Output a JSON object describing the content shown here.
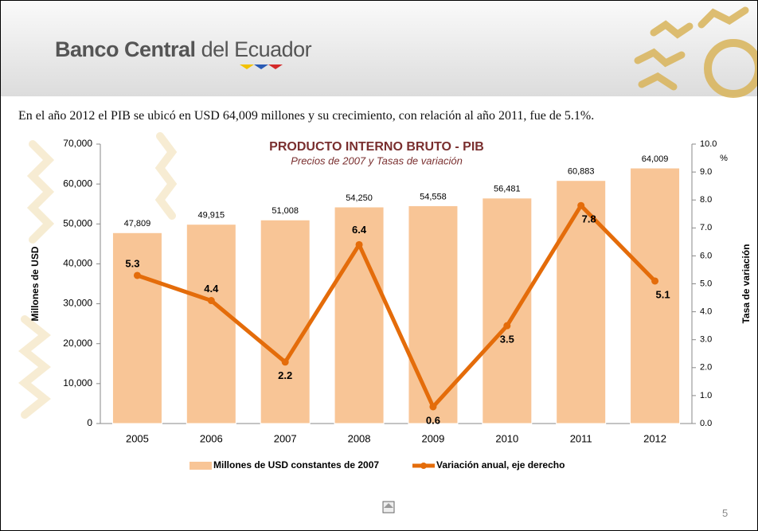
{
  "header": {
    "brand_bold": "Banco Central",
    "brand_rest": "del Ecuador"
  },
  "sentence": "En el año 2012 el PIB se ubicó en USD 64,009 millones y su crecimiento, con relación al año 2011, fue de 5.1%.",
  "page_number": "5",
  "chart_data": {
    "type": "bar",
    "title": "PRODUCTO INTERNO BRUTO - PIB",
    "subtitle": "Precios de 2007 y Tasas de variación",
    "y_label": "Millones de USD",
    "y2_label": "Tasa de variación",
    "y2_unit": "%",
    "categories": [
      "2005",
      "2006",
      "2007",
      "2008",
      "2009",
      "2010",
      "2011",
      "2012"
    ],
    "series": [
      {
        "name": "Millones de USD constantes de 2007",
        "type": "bar",
        "color": "#f8c596",
        "values": [
          47809,
          49915,
          51008,
          54250,
          54558,
          56481,
          60883,
          64009
        ],
        "value_labels": [
          "47,809",
          "49,915",
          "51,008",
          "54,250",
          "54,558",
          "56,481",
          "60,883",
          "64,009"
        ]
      },
      {
        "name": "Variación anual, eje derecho",
        "type": "line",
        "axis": "y2",
        "color": "#e46c0a",
        "values": [
          5.3,
          4.4,
          2.2,
          6.4,
          0.6,
          3.5,
          7.8,
          5.1
        ]
      }
    ],
    "ylim": [
      0,
      70000
    ],
    "yticks": [
      0,
      {
        "value": 10000,
        "label": "10,000"
      },
      {
        "value": 20000,
        "label": "20,000"
      },
      {
        "value": 30000,
        "label": "30,000"
      },
      {
        "value": 40000,
        "label": "40,000"
      },
      {
        "value": 50000,
        "label": "50,000"
      },
      {
        "value": 60000,
        "label": "60,000"
      },
      {
        "value": 70000,
        "label": "70,000"
      }
    ],
    "y2lim": [
      0,
      10
    ],
    "y2ticks": [
      {
        "value": 0,
        "label": "0.0"
      },
      {
        "value": 1,
        "label": "1.0"
      },
      {
        "value": 2,
        "label": "2.0"
      },
      {
        "value": 3,
        "label": "3.0"
      },
      {
        "value": 4,
        "label": "4.0"
      },
      {
        "value": 5,
        "label": "5.0"
      },
      {
        "value": 6,
        "label": "6.0"
      },
      {
        "value": 7,
        "label": "7.0"
      },
      {
        "value": 8,
        "label": "8.0"
      },
      {
        "value": 9,
        "label": "9.0"
      },
      {
        "value": 10,
        "label": "10.0"
      }
    ],
    "grid": false,
    "legend": "bottom"
  }
}
